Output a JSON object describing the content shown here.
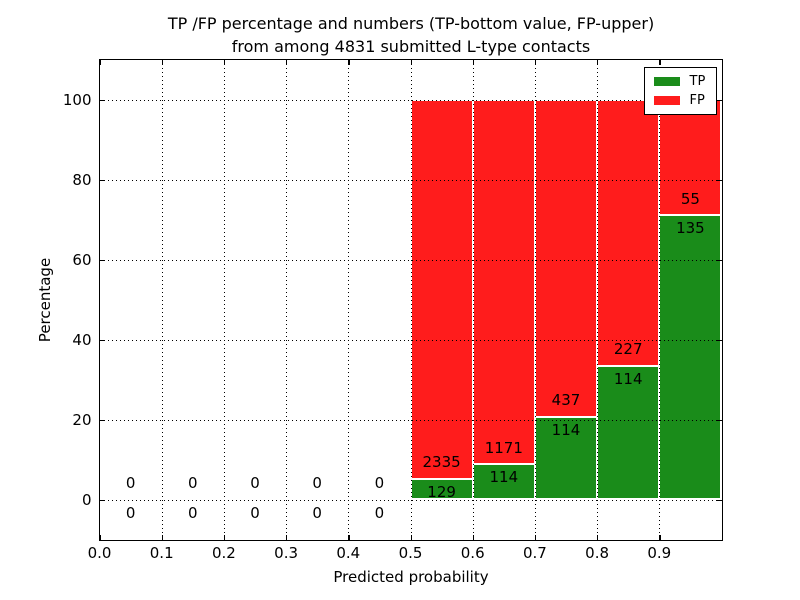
{
  "figure": {
    "title_line1": "TP /FP percentage and numbers (TP-bottom value, FP-upper)",
    "title_line2": "from among 4831 submitted L-type contacts"
  },
  "legend": {
    "items": [
      {
        "label": "TP",
        "color": "#1a8c1a"
      },
      {
        "label": "FP",
        "color": "#ff1c1c"
      }
    ]
  },
  "chart_data": {
    "type": "bar",
    "stacked": true,
    "title": "TP /FP percentage and numbers (TP-bottom value, FP-upper) from among 4831 submitted L-type contacts",
    "xlabel": "Predicted probability",
    "ylabel": "Percentage",
    "xlim": [
      0,
      1
    ],
    "ylim": [
      -10,
      110
    ],
    "xticks": [
      0,
      0.1,
      0.2,
      0.3,
      0.4,
      0.5,
      0.6,
      0.7,
      0.8,
      0.9
    ],
    "yticks": [
      0,
      20,
      40,
      60,
      80,
      100
    ],
    "bin_width": 0.1,
    "grid": "dotted",
    "legend_position": "upper right",
    "tp_color": "#1a8c1a",
    "fp_color": "#ff1c1c",
    "total_contacts": 4831,
    "bins": [
      {
        "x0": 0.0,
        "tp_count": 0,
        "fp_count": 0,
        "tp_pct": 0,
        "fp_pct": 0
      },
      {
        "x0": 0.1,
        "tp_count": 0,
        "fp_count": 0,
        "tp_pct": 0,
        "fp_pct": 0
      },
      {
        "x0": 0.2,
        "tp_count": 0,
        "fp_count": 0,
        "tp_pct": 0,
        "fp_pct": 0
      },
      {
        "x0": 0.3,
        "tp_count": 0,
        "fp_count": 0,
        "tp_pct": 0,
        "fp_pct": 0
      },
      {
        "x0": 0.4,
        "tp_count": 0,
        "fp_count": 0,
        "tp_pct": 0,
        "fp_pct": 0
      },
      {
        "x0": 0.5,
        "tp_count": 129,
        "fp_count": 2335,
        "tp_pct": 5.24,
        "fp_pct": 94.76
      },
      {
        "x0": 0.6,
        "tp_count": 114,
        "fp_count": 1171,
        "tp_pct": 8.87,
        "fp_pct": 91.13
      },
      {
        "x0": 0.7,
        "tp_count": 114,
        "fp_count": 437,
        "tp_pct": 20.69,
        "fp_pct": 79.31
      },
      {
        "x0": 0.8,
        "tp_count": 114,
        "fp_count": 227,
        "tp_pct": 33.43,
        "fp_pct": 66.57
      },
      {
        "x0": 0.9,
        "tp_count": 135,
        "fp_count": 55,
        "tp_pct": 71.05,
        "fp_pct": 28.95
      }
    ]
  }
}
